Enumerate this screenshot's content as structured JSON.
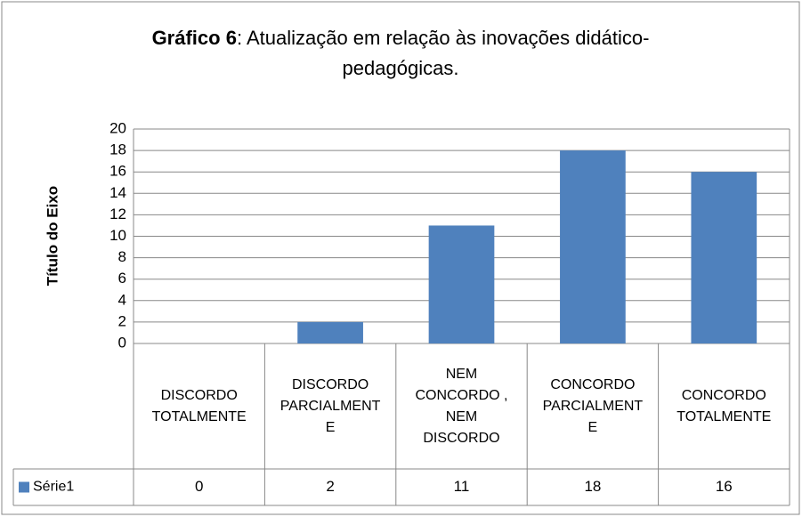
{
  "chart_data": {
    "type": "bar",
    "title_parts": [
      "Gráfico 6",
      ": Atualização em relação às inovações didático-",
      "pedagógicas."
    ],
    "y_axis_label": "Título do Eixo",
    "categories": [
      "DISCORDO TOTALMENTE",
      "DISCORDO PARCIALMENTE",
      "NEM CONCORDO , NEM DISCORDO",
      "CONCORDO PARCIALMENTE",
      "CONCORDO TOTALMENTE"
    ],
    "series": [
      {
        "name": "Série1",
        "color": "#4f81bd",
        "values": [
          0,
          2,
          11,
          18,
          16
        ]
      }
    ],
    "ylim": [
      0,
      20
    ],
    "yticks": [
      0,
      2,
      4,
      6,
      8,
      10,
      12,
      14,
      16,
      18,
      20
    ],
    "grid": true
  }
}
